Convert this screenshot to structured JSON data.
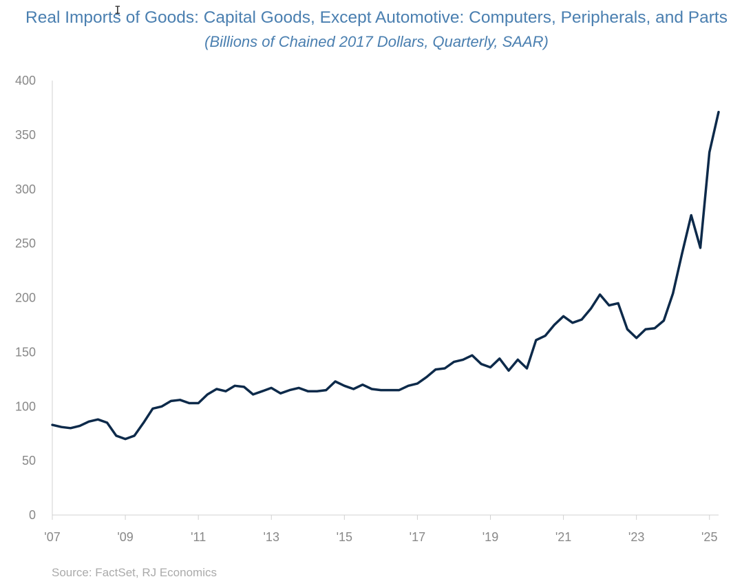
{
  "chart_data": {
    "type": "line",
    "title": "Real Imports of Goods: Capital Goods, Except Automotive: Computers, Peripherals, and Parts",
    "subtitle": "(Billions of Chained 2017 Dollars, Quarterly, SAAR)",
    "ylim": [
      0,
      400
    ],
    "yticks": [
      0,
      50,
      100,
      150,
      200,
      250,
      300,
      350,
      400
    ],
    "xlim": [
      2007.0,
      2025.25
    ],
    "xticks": [
      {
        "value": 2007,
        "label": "'07"
      },
      {
        "value": 2009,
        "label": "'09"
      },
      {
        "value": 2011,
        "label": "'11"
      },
      {
        "value": 2013,
        "label": "'13"
      },
      {
        "value": 2015,
        "label": "'15"
      },
      {
        "value": 2017,
        "label": "'17"
      },
      {
        "value": 2019,
        "label": "'19"
      },
      {
        "value": 2021,
        "label": "'21"
      },
      {
        "value": 2023,
        "label": "'23"
      },
      {
        "value": 2025,
        "label": "'25"
      }
    ],
    "line_color": "#0d2a4a",
    "grid": false,
    "series": [
      {
        "values": [
          [
            2007.0,
            83
          ],
          [
            2007.25,
            81
          ],
          [
            2007.5,
            80
          ],
          [
            2007.75,
            82
          ],
          [
            2008.0,
            86
          ],
          [
            2008.25,
            88
          ],
          [
            2008.5,
            85
          ],
          [
            2008.75,
            73
          ],
          [
            2009.0,
            70
          ],
          [
            2009.25,
            73
          ],
          [
            2009.5,
            85
          ],
          [
            2009.75,
            98
          ],
          [
            2010.0,
            100
          ],
          [
            2010.25,
            105
          ],
          [
            2010.5,
            106
          ],
          [
            2010.75,
            103
          ],
          [
            2011.0,
            103
          ],
          [
            2011.25,
            111
          ],
          [
            2011.5,
            116
          ],
          [
            2011.75,
            114
          ],
          [
            2012.0,
            119
          ],
          [
            2012.25,
            118
          ],
          [
            2012.5,
            111
          ],
          [
            2012.75,
            114
          ],
          [
            2013.0,
            117
          ],
          [
            2013.25,
            112
          ],
          [
            2013.5,
            115
          ],
          [
            2013.75,
            117
          ],
          [
            2014.0,
            114
          ],
          [
            2014.25,
            114
          ],
          [
            2014.5,
            115
          ],
          [
            2014.75,
            123
          ],
          [
            2015.0,
            119
          ],
          [
            2015.25,
            116
          ],
          [
            2015.5,
            120
          ],
          [
            2015.75,
            116
          ],
          [
            2016.0,
            115
          ],
          [
            2016.25,
            115
          ],
          [
            2016.5,
            115
          ],
          [
            2016.75,
            119
          ],
          [
            2017.0,
            121
          ],
          [
            2017.25,
            127
          ],
          [
            2017.5,
            134
          ],
          [
            2017.75,
            135
          ],
          [
            2018.0,
            141
          ],
          [
            2018.25,
            143
          ],
          [
            2018.5,
            147
          ],
          [
            2018.75,
            139
          ],
          [
            2019.0,
            136
          ],
          [
            2019.25,
            144
          ],
          [
            2019.5,
            133
          ],
          [
            2019.75,
            143
          ],
          [
            2020.0,
            135
          ],
          [
            2020.25,
            161
          ],
          [
            2020.5,
            165
          ],
          [
            2020.75,
            175
          ],
          [
            2021.0,
            183
          ],
          [
            2021.25,
            177
          ],
          [
            2021.5,
            180
          ],
          [
            2021.75,
            190
          ],
          [
            2022.0,
            203
          ],
          [
            2022.25,
            193
          ],
          [
            2022.5,
            195
          ],
          [
            2022.75,
            171
          ],
          [
            2023.0,
            163
          ],
          [
            2023.25,
            171
          ],
          [
            2023.5,
            172
          ],
          [
            2023.75,
            179
          ],
          [
            2024.0,
            204
          ],
          [
            2024.25,
            241
          ],
          [
            2024.5,
            276
          ],
          [
            2024.75,
            246
          ],
          [
            2025.0,
            334
          ],
          [
            2025.25,
            371
          ]
        ]
      }
    ]
  },
  "source": "Source: FactSet, RJ Economics"
}
